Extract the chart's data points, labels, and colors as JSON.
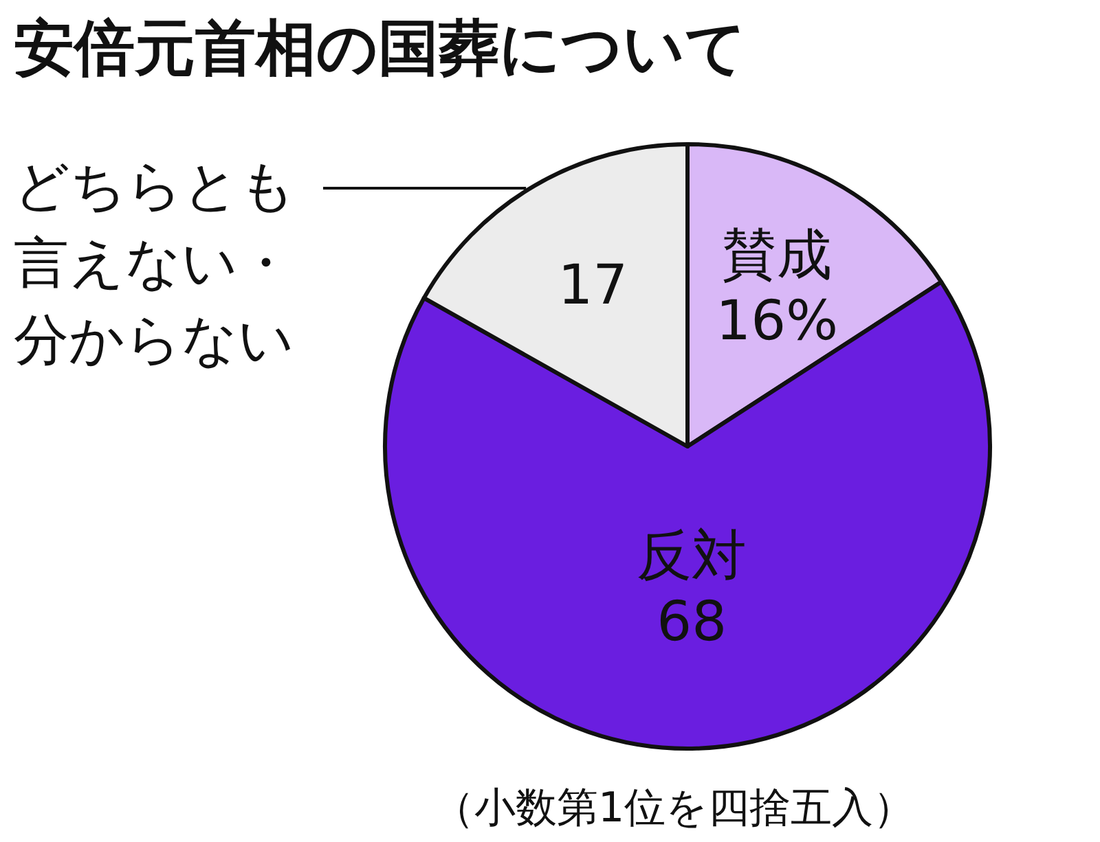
{
  "chart_data": {
    "type": "pie",
    "title": "安倍元首相の国葬について",
    "categories": [
      "賛成",
      "反対",
      "どちらとも言えない・分からない"
    ],
    "values": [
      16,
      68,
      17
    ],
    "colors": [
      "#d9b8f7",
      "#6a1ee0",
      "#ececec"
    ],
    "value_labels": [
      "16%",
      "68",
      "17"
    ],
    "annotations": [
      "（小数第1位を四捨五入）"
    ]
  }
}
